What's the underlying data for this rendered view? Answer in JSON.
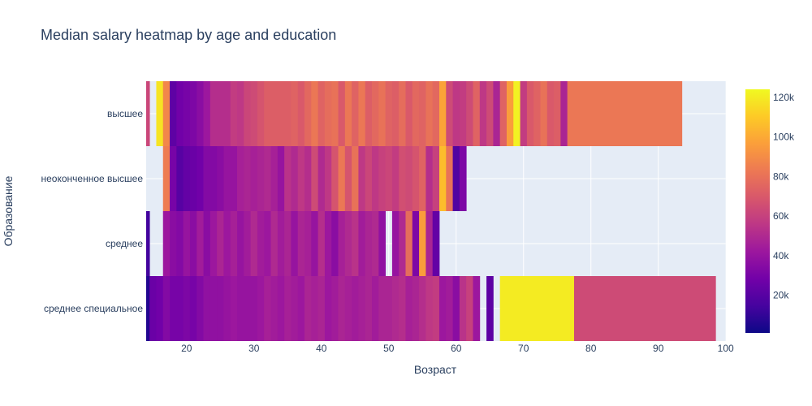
{
  "chart_data": {
    "type": "heatmap",
    "title": "Median salary heatmap by age and education",
    "xlabel": "Возраст",
    "ylabel": "Образование",
    "xlim": [
      14,
      100
    ],
    "x_ticks": [
      20,
      30,
      40,
      50,
      60,
      70,
      80,
      90,
      100
    ],
    "categories_y": [
      "среднее специальное",
      "среднее",
      "неоконченное высшее",
      "высшее"
    ],
    "colorscale": "plasma",
    "colorbar": {
      "range": [
        1000,
        124000
      ],
      "ticks": [
        20000,
        40000,
        60000,
        80000,
        100000,
        120000
      ],
      "tick_labels": [
        "20k",
        "40k",
        "60k",
        "80k",
        "100k",
        "120k"
      ]
    },
    "grid": true,
    "rows": [
      {
        "category": "высшее",
        "x": [
          14,
          15,
          16,
          17,
          18,
          19,
          20,
          21,
          22,
          23,
          24,
          25,
          26,
          27,
          28,
          29,
          30,
          31,
          32,
          33,
          34,
          35,
          36,
          37,
          38,
          39,
          40,
          41,
          42,
          43,
          44,
          45,
          46,
          47,
          48,
          49,
          50,
          51,
          52,
          53,
          54,
          55,
          56,
          57,
          58,
          59,
          60,
          61,
          62,
          63,
          64,
          65,
          66,
          67,
          68,
          69,
          70,
          71,
          72,
          73,
          74,
          75,
          76,
          77,
          88
        ],
        "values": [
          62000,
          null,
          118000,
          88000,
          22000,
          28000,
          30000,
          32000,
          36000,
          42000,
          52000,
          52000,
          52000,
          58000,
          56000,
          62000,
          64000,
          68000,
          72000,
          72000,
          72000,
          72000,
          74000,
          70000,
          76000,
          82000,
          74000,
          78000,
          80000,
          70000,
          82000,
          74000,
          82000,
          72000,
          76000,
          80000,
          74000,
          72000,
          78000,
          70000,
          76000,
          74000,
          80000,
          76000,
          98000,
          64000,
          56000,
          58000,
          64000,
          74000,
          56000,
          64000,
          48000,
          74000,
          96000,
          122000,
          58000,
          70000,
          74000,
          80000,
          70000,
          72000,
          48000,
          82000,
          82000
        ]
      },
      {
        "category": "неоконченное высшее",
        "x": [
          17,
          18,
          19,
          20,
          21,
          22,
          23,
          24,
          25,
          26,
          27,
          28,
          29,
          30,
          31,
          32,
          33,
          34,
          35,
          36,
          37,
          38,
          39,
          40,
          41,
          42,
          43,
          44,
          45,
          46,
          47,
          48,
          49,
          50,
          51,
          52,
          53,
          54,
          55,
          56,
          57,
          58,
          59,
          60,
          61
        ],
        "values": [
          84000,
          30000,
          20000,
          24000,
          26000,
          28000,
          34000,
          34000,
          36000,
          40000,
          40000,
          46000,
          48000,
          46000,
          48000,
          50000,
          46000,
          40000,
          54000,
          50000,
          56000,
          52000,
          64000,
          50000,
          56000,
          68000,
          82000,
          68000,
          80000,
          56000,
          62000,
          56000,
          60000,
          62000,
          58000,
          66000,
          64000,
          68000,
          74000,
          52000,
          60000,
          106000,
          80000,
          18000,
          32000
        ]
      },
      {
        "category": "среднее",
        "x": [
          14,
          15,
          16,
          17,
          18,
          19,
          20,
          21,
          22,
          23,
          24,
          25,
          26,
          27,
          28,
          29,
          30,
          31,
          32,
          33,
          34,
          35,
          36,
          37,
          38,
          39,
          40,
          41,
          42,
          43,
          44,
          45,
          46,
          47,
          48,
          49,
          50,
          51,
          52,
          53,
          54,
          55,
          56,
          57
        ],
        "values": [
          14000,
          null,
          null,
          42000,
          36000,
          34000,
          40000,
          36000,
          44000,
          36000,
          42000,
          48000,
          42000,
          46000,
          40000,
          44000,
          50000,
          44000,
          42000,
          50000,
          44000,
          48000,
          40000,
          48000,
          46000,
          40000,
          52000,
          42000,
          36000,
          46000,
          50000,
          54000,
          44000,
          48000,
          50000,
          38000,
          null,
          40000,
          50000,
          78000,
          32000,
          96000,
          48000,
          24000
        ]
      },
      {
        "category": "среднее специальное",
        "x": [
          14,
          15,
          16,
          17,
          18,
          19,
          20,
          21,
          22,
          23,
          24,
          25,
          26,
          27,
          28,
          29,
          30,
          31,
          32,
          33,
          34,
          35,
          36,
          37,
          38,
          39,
          40,
          41,
          42,
          43,
          44,
          45,
          46,
          47,
          48,
          49,
          50,
          51,
          52,
          53,
          54,
          55,
          56,
          57,
          58,
          59,
          60,
          61,
          62,
          63,
          64,
          65,
          66,
          67,
          88
        ],
        "values": [
          6000,
          26000,
          28000,
          34000,
          30000,
          30000,
          32000,
          30000,
          34000,
          38000,
          38000,
          38000,
          40000,
          42000,
          40000,
          40000,
          40000,
          42000,
          46000,
          44000,
          42000,
          46000,
          44000,
          42000,
          48000,
          46000,
          48000,
          42000,
          44000,
          48000,
          46000,
          44000,
          46000,
          48000,
          44000,
          48000,
          48000,
          50000,
          52000,
          46000,
          48000,
          52000,
          56000,
          58000,
          42000,
          44000,
          36000,
          54000,
          60000,
          42000,
          null,
          22000,
          null,
          120000,
          64000
        ]
      }
    ]
  }
}
